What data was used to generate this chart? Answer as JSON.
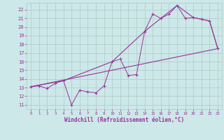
{
  "background_color": "#cce8e8",
  "grid_color": "#b0c8c8",
  "line_color": "#993399",
  "xlabel": "Windchill (Refroidissement éolien,°C)",
  "xlim": [
    -0.5,
    23.5
  ],
  "ylim": [
    10.5,
    22.8
  ],
  "yticks": [
    11,
    12,
    13,
    14,
    15,
    16,
    17,
    18,
    19,
    20,
    21,
    22
  ],
  "xticks": [
    0,
    1,
    2,
    3,
    4,
    5,
    6,
    7,
    8,
    9,
    10,
    11,
    12,
    13,
    14,
    15,
    16,
    17,
    18,
    19,
    20,
    21,
    22,
    23
  ],
  "line1_x": [
    0,
    1,
    2,
    3,
    4,
    5,
    6,
    7,
    8,
    9,
    10,
    11,
    12,
    13,
    14,
    15,
    16,
    17,
    18,
    19,
    20,
    21,
    22,
    23
  ],
  "line1_y": [
    13.1,
    13.2,
    12.9,
    13.5,
    13.8,
    11.0,
    12.7,
    12.5,
    12.4,
    13.2,
    16.0,
    16.3,
    14.4,
    14.5,
    19.5,
    21.5,
    21.0,
    21.5,
    22.5,
    21.0,
    21.1,
    20.9,
    20.7,
    17.5
  ],
  "line2_x": [
    0,
    4,
    10,
    14,
    18,
    20,
    22,
    23
  ],
  "line2_y": [
    13.1,
    13.8,
    16.0,
    19.5,
    22.5,
    21.1,
    20.7,
    17.5
  ],
  "line3_x": [
    0,
    23
  ],
  "line3_y": [
    13.1,
    17.5
  ]
}
